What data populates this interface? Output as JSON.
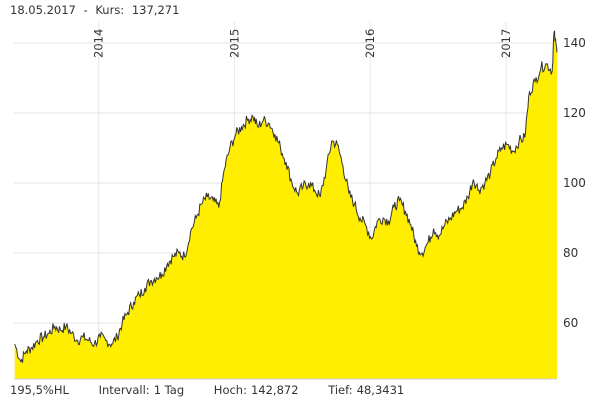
{
  "header": {
    "date": "18.05.2017",
    "separator": "-",
    "price_label": "Kurs:",
    "price_value": "137,271"
  },
  "footer": {
    "change": "195,5%HL",
    "interval_label": "Intervall:",
    "interval_value": "1 Tag",
    "high_label": "Hoch:",
    "high_value": "142,872",
    "low_label": "Tief:",
    "low_value": "48,3431"
  },
  "colors": {
    "fill": "#ffee00",
    "line": "#333333",
    "grid": "#e6e6e6"
  },
  "chart_data": {
    "type": "area",
    "title": "",
    "xlabel": "",
    "ylabel": "",
    "x_ticks": [
      "2014",
      "2015",
      "2016",
      "2017"
    ],
    "y_ticks": [
      60,
      80,
      100,
      120,
      140
    ],
    "xlim": [
      "2013-05-18",
      "2017-05-18"
    ],
    "ylim": [
      44,
      146
    ],
    "grid": true,
    "series": [
      {
        "x": [
          "2013-05-20",
          "2013-06-05",
          "2013-06-20",
          "2013-07-05",
          "2013-07-20",
          "2013-08-05",
          "2013-08-20",
          "2013-09-05",
          "2013-09-20",
          "2013-10-05",
          "2013-10-20",
          "2013-11-05",
          "2013-11-20",
          "2013-12-05",
          "2013-12-20",
          "2014-01-05",
          "2014-01-20",
          "2014-02-05",
          "2014-02-20",
          "2014-03-05",
          "2014-03-20",
          "2014-04-05",
          "2014-04-20",
          "2014-05-05",
          "2014-05-20",
          "2014-06-05",
          "2014-06-20",
          "2014-07-05",
          "2014-07-20",
          "2014-08-05",
          "2014-08-20",
          "2014-09-05",
          "2014-09-20",
          "2014-10-05",
          "2014-10-20",
          "2014-11-05",
          "2014-11-20",
          "2014-12-05",
          "2014-12-20",
          "2015-01-05",
          "2015-01-20",
          "2015-02-05",
          "2015-02-20",
          "2015-03-05",
          "2015-03-20",
          "2015-04-05",
          "2015-04-20",
          "2015-05-05",
          "2015-05-20",
          "2015-06-05",
          "2015-06-20",
          "2015-07-05",
          "2015-07-20",
          "2015-08-05",
          "2015-08-20",
          "2015-09-05",
          "2015-09-20",
          "2015-10-05",
          "2015-10-20",
          "2015-11-05",
          "2015-11-20",
          "2015-12-05",
          "2015-12-20",
          "2016-01-05",
          "2016-01-20",
          "2016-02-05",
          "2016-02-20",
          "2016-03-05",
          "2016-03-20",
          "2016-04-05",
          "2016-04-20",
          "2016-05-05",
          "2016-05-20",
          "2016-06-05",
          "2016-06-20",
          "2016-07-05",
          "2016-07-20",
          "2016-08-05",
          "2016-08-20",
          "2016-09-05",
          "2016-09-20",
          "2016-10-05",
          "2016-10-20",
          "2016-11-05",
          "2016-11-20",
          "2016-12-05",
          "2016-12-20",
          "2017-01-05",
          "2017-01-20",
          "2017-02-05",
          "2017-02-20",
          "2017-03-05",
          "2017-03-20",
          "2017-04-05",
          "2017-04-20",
          "2017-05-05",
          "2017-05-10",
          "2017-05-18"
        ],
        "values": [
          54,
          49,
          52,
          53,
          55,
          56,
          57,
          59,
          58,
          59,
          57,
          55,
          56,
          55,
          54,
          56,
          55,
          54,
          56,
          60,
          63,
          66,
          68,
          70,
          72,
          73,
          74,
          77,
          79,
          80,
          79,
          86,
          90,
          94,
          96,
          95,
          93,
          104,
          110,
          114,
          116,
          118,
          119,
          116,
          118,
          117,
          114,
          110,
          106,
          100,
          97,
          99,
          100,
          98,
          96,
          104,
          112,
          111,
          105,
          97,
          94,
          90,
          88,
          84,
          89,
          90,
          89,
          93,
          95,
          92,
          88,
          82,
          80,
          83,
          87,
          85,
          88,
          90,
          92,
          93,
          96,
          101,
          98,
          100,
          103,
          107,
          110,
          111,
          109,
          112,
          113,
          126,
          129,
          133,
          134,
          132,
          143,
          137.3
        ]
      }
    ]
  }
}
